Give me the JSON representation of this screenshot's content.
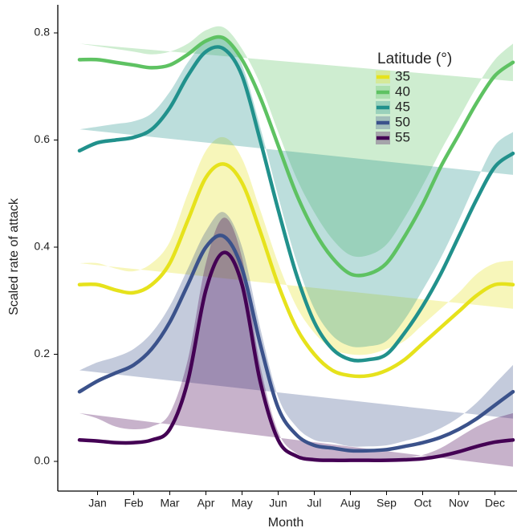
{
  "chart_data": {
    "type": "line",
    "x_label": "Month",
    "y_label": "Scaled rate of attack",
    "legend_title": "Latitude (°)",
    "legend_position": "top-right",
    "categories": [
      null,
      "Jan",
      null,
      "Feb",
      null,
      "Mar",
      null,
      "Apr",
      null,
      "May",
      null,
      "Jun",
      null,
      "Jul",
      null,
      "Aug",
      null,
      "Sep",
      null,
      "Oct",
      null,
      "Nov",
      null,
      "Dec",
      null
    ],
    "ylim": [
      0,
      0.8
    ],
    "yticks": [
      {
        "value": 0,
        "label": "0.0"
      },
      0.2,
      0.4,
      0.6,
      0.8
    ],
    "series": [
      {
        "name": "35",
        "color": "#e6e21c",
        "values": [
          0.33,
          0.33,
          0.32,
          0.315,
          0.33,
          0.37,
          0.45,
          0.53,
          0.555,
          0.52,
          0.43,
          0.33,
          0.25,
          0.2,
          0.17,
          0.16,
          0.16,
          0.17,
          0.19,
          0.22,
          0.25,
          0.28,
          0.31,
          0.33,
          0.33
        ],
        "lower": [
          0.29,
          0.29,
          0.28,
          0.275,
          0.29,
          0.33,
          0.4,
          0.48,
          0.505,
          0.475,
          0.39,
          0.29,
          0.21,
          0.16,
          0.13,
          0.12,
          0.12,
          0.13,
          0.155,
          0.185,
          0.215,
          0.245,
          0.27,
          0.29,
          0.285
        ],
        "upper": [
          0.37,
          0.37,
          0.36,
          0.355,
          0.37,
          0.41,
          0.5,
          0.58,
          0.605,
          0.565,
          0.47,
          0.37,
          0.29,
          0.24,
          0.21,
          0.2,
          0.2,
          0.21,
          0.225,
          0.255,
          0.285,
          0.315,
          0.35,
          0.37,
          0.375
        ]
      },
      {
        "name": "40",
        "color": "#5ec262",
        "values": [
          0.75,
          0.75,
          0.745,
          0.74,
          0.735,
          0.74,
          0.76,
          0.785,
          0.79,
          0.75,
          0.68,
          0.59,
          0.5,
          0.43,
          0.38,
          0.35,
          0.35,
          0.37,
          0.42,
          0.48,
          0.55,
          0.61,
          0.67,
          0.72,
          0.745
        ],
        "lower": [
          0.72,
          0.725,
          0.72,
          0.715,
          0.71,
          0.715,
          0.74,
          0.765,
          0.77,
          0.73,
          0.655,
          0.565,
          0.47,
          0.395,
          0.345,
          0.315,
          0.315,
          0.335,
          0.385,
          0.445,
          0.52,
          0.58,
          0.64,
          0.69,
          0.71
        ],
        "upper": [
          0.78,
          0.775,
          0.77,
          0.765,
          0.76,
          0.765,
          0.78,
          0.805,
          0.81,
          0.77,
          0.705,
          0.615,
          0.53,
          0.465,
          0.415,
          0.385,
          0.385,
          0.405,
          0.455,
          0.515,
          0.58,
          0.64,
          0.7,
          0.75,
          0.78
        ]
      },
      {
        "name": "45",
        "color": "#21918c",
        "values": [
          0.58,
          0.595,
          0.6,
          0.605,
          0.62,
          0.66,
          0.72,
          0.765,
          0.77,
          0.72,
          0.6,
          0.47,
          0.35,
          0.26,
          0.21,
          0.19,
          0.19,
          0.2,
          0.24,
          0.29,
          0.35,
          0.42,
          0.49,
          0.55,
          0.575
        ],
        "lower": [
          0.54,
          0.565,
          0.57,
          0.575,
          0.59,
          0.63,
          0.695,
          0.745,
          0.75,
          0.7,
          0.575,
          0.445,
          0.325,
          0.235,
          0.185,
          0.165,
          0.165,
          0.175,
          0.215,
          0.26,
          0.32,
          0.39,
          0.455,
          0.51,
          0.535
        ],
        "upper": [
          0.62,
          0.625,
          0.63,
          0.635,
          0.65,
          0.69,
          0.745,
          0.785,
          0.79,
          0.74,
          0.625,
          0.495,
          0.375,
          0.285,
          0.235,
          0.215,
          0.215,
          0.225,
          0.265,
          0.32,
          0.38,
          0.45,
          0.525,
          0.59,
          0.615
        ]
      },
      {
        "name": "50",
        "color": "#3b528b",
        "values": [
          0.13,
          0.15,
          0.165,
          0.18,
          0.21,
          0.26,
          0.33,
          0.4,
          0.42,
          0.36,
          0.22,
          0.1,
          0.05,
          0.03,
          0.025,
          0.02,
          0.02,
          0.022,
          0.028,
          0.035,
          0.045,
          0.06,
          0.08,
          0.105,
          0.13
        ],
        "lower": [
          0.09,
          0.115,
          0.135,
          0.15,
          0.18,
          0.23,
          0.3,
          0.37,
          0.38,
          0.32,
          0.19,
          0.08,
          0.035,
          0.02,
          0.015,
          0.012,
          0.012,
          0.014,
          0.018,
          0.022,
          0.028,
          0.038,
          0.05,
          0.065,
          0.08
        ],
        "upper": [
          0.17,
          0.185,
          0.195,
          0.21,
          0.24,
          0.29,
          0.36,
          0.43,
          0.465,
          0.4,
          0.25,
          0.12,
          0.065,
          0.04,
          0.035,
          0.028,
          0.028,
          0.03,
          0.038,
          0.048,
          0.062,
          0.082,
          0.11,
          0.145,
          0.18
        ]
      },
      {
        "name": "55",
        "color": "#440154",
        "values": [
          0.04,
          0.038,
          0.035,
          0.035,
          0.04,
          0.06,
          0.15,
          0.32,
          0.39,
          0.33,
          0.15,
          0.04,
          0.01,
          0.003,
          0.002,
          0.002,
          0.002,
          0.002,
          0.003,
          0.005,
          0.01,
          0.018,
          0.028,
          0.036,
          0.04
        ],
        "lower": [
          -0.01,
          -0.005,
          0.005,
          0.01,
          0.015,
          0.03,
          0.11,
          0.27,
          0.33,
          0.28,
          0.12,
          0.025,
          0.005,
          0,
          0,
          0,
          0,
          0,
          0,
          0,
          0,
          -0.005,
          -0.01,
          -0.01,
          -0.01
        ],
        "upper": [
          0.09,
          0.08,
          0.065,
          0.06,
          0.065,
          0.09,
          0.19,
          0.37,
          0.455,
          0.38,
          0.18,
          0.055,
          0.015,
          0.006,
          0.004,
          0.004,
          0.004,
          0.004,
          0.006,
          0.012,
          0.025,
          0.045,
          0.065,
          0.08,
          0.09
        ]
      }
    ]
  }
}
